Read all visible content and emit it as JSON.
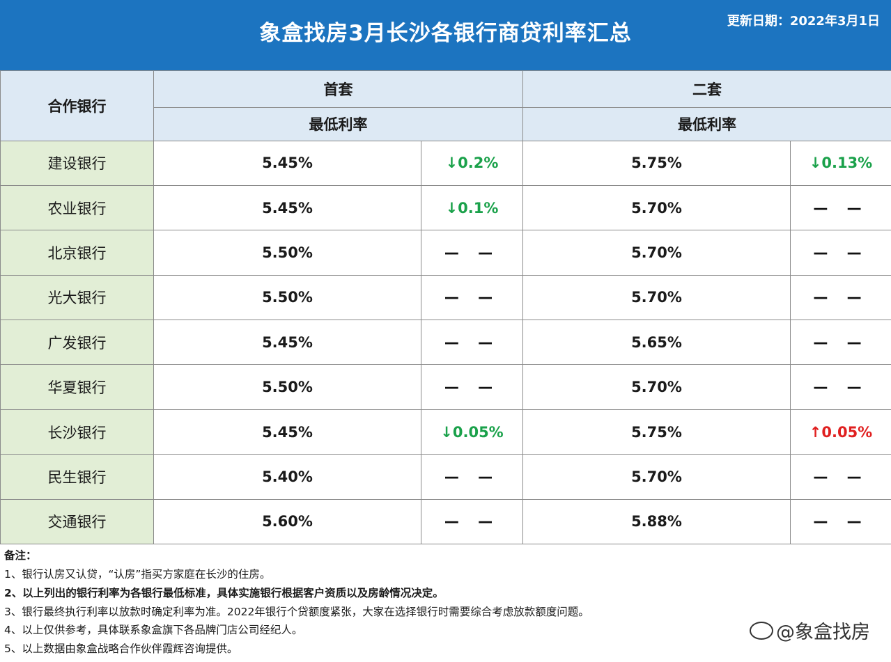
{
  "header": {
    "title": "象盒找房3月长沙各银行商贷利率汇总",
    "update_date": "更新日期：2022年3月1日"
  },
  "table": {
    "col_bank": "合作银行",
    "col_first": "首套",
    "col_second": "二套",
    "sub_first": "最低利率",
    "sub_second": "最低利率",
    "rows": [
      {
        "bank": "建设银行",
        "first_rate": "5.45%",
        "first_change": "↓0.2%",
        "second_rate": "5.75%",
        "second_change": "↓0.13%"
      },
      {
        "bank": "农业银行",
        "first_rate": "5.45%",
        "first_change": "↓0.1%",
        "second_rate": "5.70%",
        "second_change": "— —"
      },
      {
        "bank": "北京银行",
        "first_rate": "5.50%",
        "first_change": "— —",
        "second_rate": "5.70%",
        "second_change": "— —"
      },
      {
        "bank": "光大银行",
        "first_rate": "5.50%",
        "first_change": "— —",
        "second_rate": "5.70%",
        "second_change": "— —"
      },
      {
        "bank": "广发银行",
        "first_rate": "5.45%",
        "first_change": "— —",
        "second_rate": "5.65%",
        "second_change": "— —"
      },
      {
        "bank": "华夏银行",
        "first_rate": "5.50%",
        "first_change": "— —",
        "second_rate": "5.70%",
        "second_change": "— —"
      },
      {
        "bank": "长沙银行",
        "first_rate": "5.45%",
        "first_change": "↓0.05%",
        "second_rate": "5.75%",
        "second_change": "↑0.05%"
      },
      {
        "bank": "民生银行",
        "first_rate": "5.40%",
        "first_change": "— —",
        "second_rate": "5.70%",
        "second_change": "— —"
      },
      {
        "bank": "交通银行",
        "first_rate": "5.60%",
        "first_change": "— —",
        "second_rate": "5.88%",
        "second_change": "— —"
      }
    ]
  },
  "notes": {
    "title": "备注：",
    "items": [
      "1、银行认房又认贷，“认房”指买方家庭在长沙的住房。",
      "2、以上列出的银行利率为各银行最低标准，具体实施银行根据客户资质以及房龄情况决定。",
      "3、银行最终执行利率以放款时确定利率为准。2022年银行个贷额度紧张，大家在选择银行时需要综合考虑放款额度问题。",
      "4、以上仅供参考，具体联系象盒旗下各品牌门店公司经纪人。",
      "5、以上数据由象盒战略合作伙伴霞辉咨询提供。"
    ]
  },
  "brand": "@象盒找房",
  "colors": {
    "header": "#1c74c0",
    "bank_col": "#e2eed6",
    "head_row": "#dde9f4",
    "down": "#1aa14a",
    "up": "#e02020"
  }
}
